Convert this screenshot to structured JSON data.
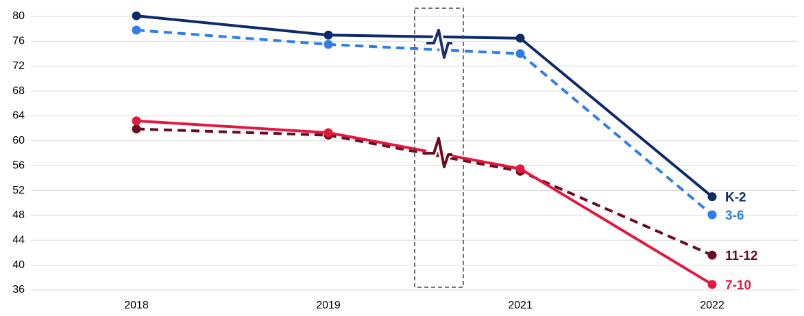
{
  "chart_data": {
    "type": "line",
    "categories": [
      "2018",
      "2019",
      "2021",
      "2022"
    ],
    "series": [
      {
        "name": "K-2",
        "color": "#0d2b6b",
        "style": "solid",
        "values": [
          80.1,
          77.0,
          76.5,
          51.0
        ]
      },
      {
        "name": "3-6",
        "color": "#2f7fe8",
        "style": "dashed",
        "values": [
          77.8,
          75.5,
          74.0,
          48.1
        ]
      },
      {
        "name": "11-12",
        "color": "#6b0a22",
        "style": "dashed",
        "values": [
          61.9,
          60.9,
          55.1,
          41.6
        ]
      },
      {
        "name": "7-10",
        "color": "#e0193f",
        "style": "solid",
        "values": [
          63.2,
          61.3,
          55.5,
          36.9
        ]
      }
    ],
    "ylim": [
      36,
      80
    ],
    "yticks": [
      36,
      40,
      44,
      48,
      52,
      56,
      60,
      64,
      68,
      72,
      76,
      80
    ],
    "grid": true
  }
}
